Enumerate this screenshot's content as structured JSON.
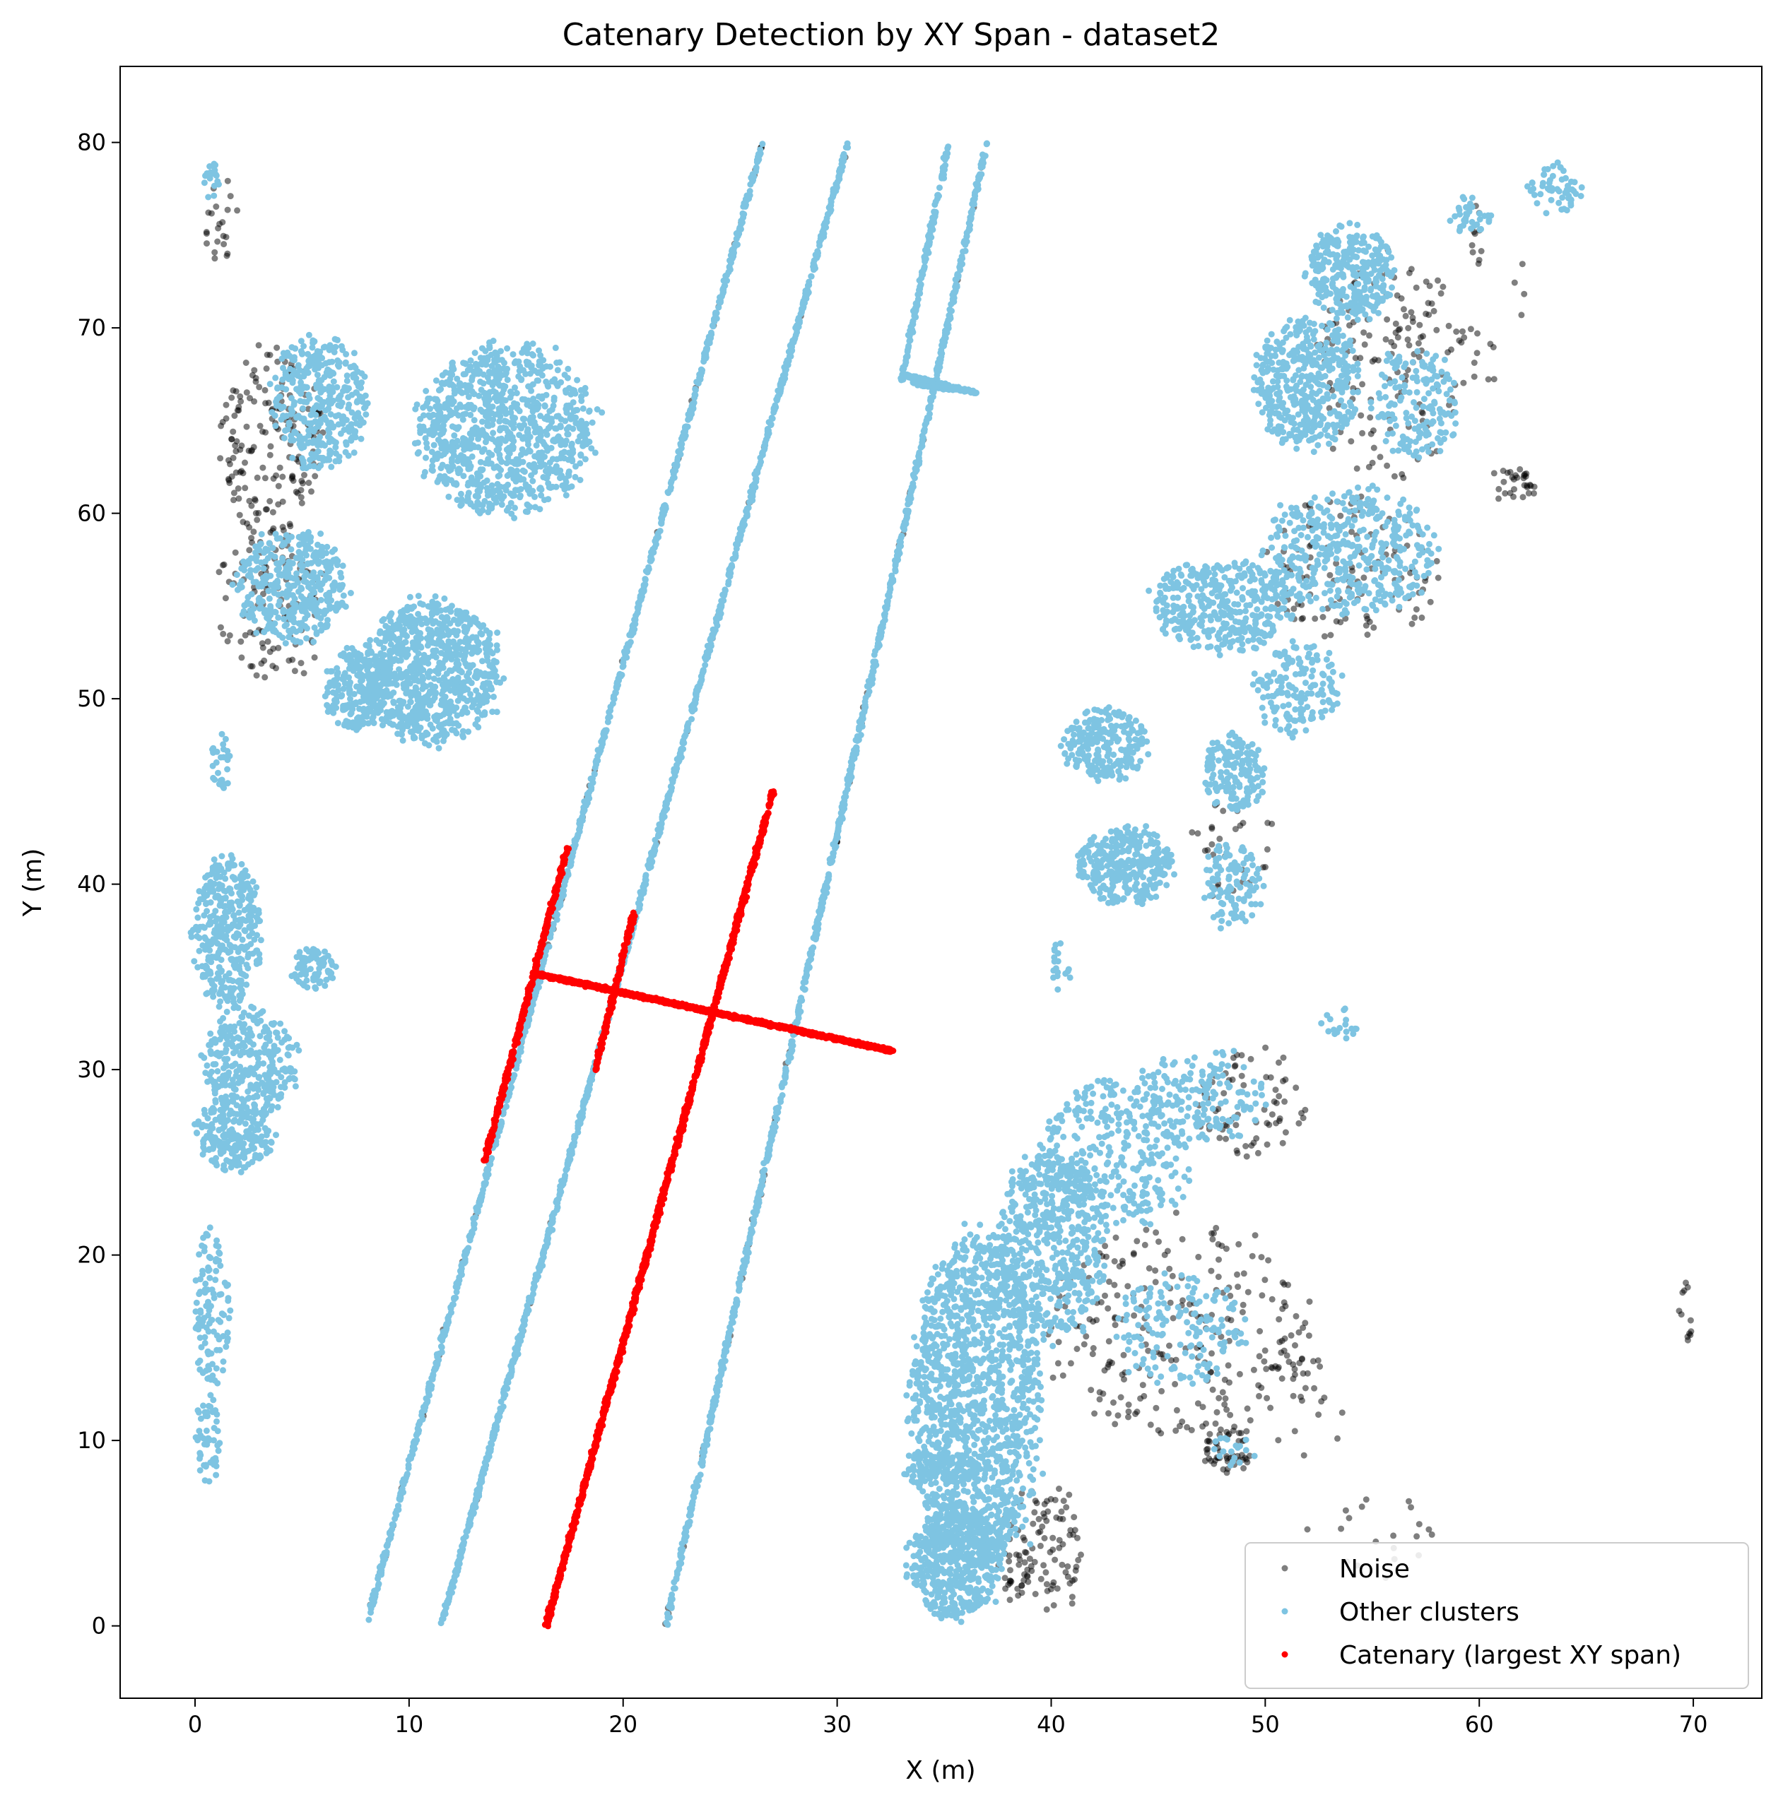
{
  "chart_data": {
    "type": "scatter",
    "title": "Catenary Detection by XY Span - dataset2",
    "xlabel": "X (m)",
    "ylabel": "Y (m)",
    "xlim": [
      -3.5,
      73.2
    ],
    "ylim": [
      -3.9,
      84.1
    ],
    "xticks": [
      0,
      10,
      20,
      30,
      40,
      50,
      60,
      70
    ],
    "yticks": [
      0,
      10,
      20,
      30,
      40,
      50,
      60,
      70,
      80
    ],
    "grid": false,
    "legend_position": "lower right",
    "series": [
      {
        "name": "Noise",
        "color": "#000000",
        "alpha": 0.5,
        "clusters": [
          {
            "x": 3.5,
            "y": 64,
            "rx": 2.5,
            "ry": 5,
            "n": 170
          },
          {
            "x": 3.5,
            "y": 55,
            "rx": 2.5,
            "ry": 4,
            "n": 110
          },
          {
            "x": 1.2,
            "y": 76,
            "rx": 0.8,
            "ry": 2.5,
            "n": 22
          },
          {
            "x": 56,
            "y": 68,
            "rx": 3.5,
            "ry": 6,
            "n": 150
          },
          {
            "x": 54,
            "y": 57,
            "rx": 4,
            "ry": 4,
            "n": 110
          },
          {
            "x": 46,
            "y": 16,
            "rx": 6,
            "ry": 6,
            "n": 240
          },
          {
            "x": 39.5,
            "y": 4,
            "rx": 2,
            "ry": 3.5,
            "n": 110
          },
          {
            "x": 49.5,
            "y": 28,
            "rx": 2.5,
            "ry": 3,
            "n": 70
          },
          {
            "x": 48.2,
            "y": 9.5,
            "rx": 1.2,
            "ry": 1.2,
            "n": 50
          },
          {
            "x": 61.5,
            "y": 61.5,
            "rx": 1.2,
            "ry": 1,
            "n": 30
          },
          {
            "x": 48.5,
            "y": 42,
            "rx": 2,
            "ry": 3,
            "n": 30
          },
          {
            "x": 55,
            "y": 5,
            "rx": 3,
            "ry": 2.5,
            "n": 20
          },
          {
            "x": 69.6,
            "y": 16.5,
            "rx": 0.3,
            "ry": 2,
            "n": 12
          },
          {
            "x": 60.5,
            "y": 72,
            "rx": 2,
            "ry": 5,
            "n": 22
          },
          {
            "x": 52,
            "y": 12,
            "rx": 2,
            "ry": 3,
            "n": 25
          }
        ],
        "lines": [
          {
            "x0": 8,
            "y0": 0,
            "x1": 26.5,
            "y1": 80,
            "n": 60
          },
          {
            "x0": 22,
            "y0": 0,
            "x1": 37,
            "y1": 80,
            "n": 55
          },
          {
            "x0": 11.5,
            "y0": 0,
            "x1": 30.5,
            "y1": 80,
            "n": 20
          }
        ]
      },
      {
        "name": "Other clusters",
        "color": "#7ec4e2",
        "alpha": 1,
        "clusters": [
          {
            "x": 14.5,
            "y": 64.5,
            "rx": 4,
            "ry": 4.5,
            "n": 900
          },
          {
            "x": 11,
            "y": 51.5,
            "rx": 3.2,
            "ry": 3.8,
            "n": 800
          },
          {
            "x": 4.5,
            "y": 56,
            "rx": 2.5,
            "ry": 3,
            "n": 380
          },
          {
            "x": 5.8,
            "y": 66,
            "rx": 2.2,
            "ry": 3.5,
            "n": 380
          },
          {
            "x": 7.5,
            "y": 50.5,
            "rx": 1.5,
            "ry": 2.2,
            "n": 220
          },
          {
            "x": 1.5,
            "y": 37.5,
            "rx": 1.6,
            "ry": 4,
            "n": 380
          },
          {
            "x": 2.5,
            "y": 30.5,
            "rx": 2.2,
            "ry": 3,
            "n": 300
          },
          {
            "x": 1.8,
            "y": 26.5,
            "rx": 1.8,
            "ry": 2,
            "n": 220
          },
          {
            "x": 5.5,
            "y": 35.5,
            "rx": 1,
            "ry": 1.2,
            "n": 70
          },
          {
            "x": 0.8,
            "y": 17,
            "rx": 0.8,
            "ry": 4.5,
            "n": 110
          },
          {
            "x": 0.6,
            "y": 10,
            "rx": 0.6,
            "ry": 2.5,
            "n": 50
          },
          {
            "x": 1.2,
            "y": 46.5,
            "rx": 0.5,
            "ry": 1.5,
            "n": 28
          },
          {
            "x": 0.8,
            "y": 78,
            "rx": 0.4,
            "ry": 1,
            "n": 18
          },
          {
            "x": 36.5,
            "y": 12,
            "rx": 3,
            "ry": 9,
            "n": 1300
          },
          {
            "x": 40,
            "y": 20.5,
            "rx": 2.5,
            "ry": 5,
            "n": 550
          },
          {
            "x": 35.5,
            "y": 3.5,
            "rx": 2.2,
            "ry": 3,
            "n": 450
          },
          {
            "x": 34.5,
            "y": 8.5,
            "rx": 1.5,
            "ry": 1,
            "n": 90
          },
          {
            "x": 43,
            "y": 25.5,
            "rx": 3.5,
            "ry": 4,
            "n": 320
          },
          {
            "x": 47,
            "y": 28.5,
            "rx": 3,
            "ry": 2.5,
            "n": 160
          },
          {
            "x": 46,
            "y": 16,
            "rx": 3,
            "ry": 3,
            "n": 160
          },
          {
            "x": 43.5,
            "y": 41,
            "rx": 2.2,
            "ry": 2,
            "n": 320
          },
          {
            "x": 48.5,
            "y": 40,
            "rx": 1.3,
            "ry": 2.5,
            "n": 110
          },
          {
            "x": 42.5,
            "y": 47.5,
            "rx": 2,
            "ry": 2,
            "n": 220
          },
          {
            "x": 48.5,
            "y": 46,
            "rx": 1.5,
            "ry": 2,
            "n": 150
          },
          {
            "x": 48,
            "y": 55,
            "rx": 3.2,
            "ry": 2.5,
            "n": 380
          },
          {
            "x": 54,
            "y": 58,
            "rx": 4,
            "ry": 3.5,
            "n": 420
          },
          {
            "x": 51.5,
            "y": 50.5,
            "rx": 2,
            "ry": 2.5,
            "n": 160
          },
          {
            "x": 52,
            "y": 67,
            "rx": 2.5,
            "ry": 3.5,
            "n": 420
          },
          {
            "x": 54,
            "y": 73,
            "rx": 2,
            "ry": 2.5,
            "n": 300
          },
          {
            "x": 57,
            "y": 66,
            "rx": 2,
            "ry": 3,
            "n": 160
          },
          {
            "x": 59.5,
            "y": 76,
            "rx": 1,
            "ry": 1,
            "n": 35
          },
          {
            "x": 63.5,
            "y": 77.5,
            "rx": 1.2,
            "ry": 1.5,
            "n": 55
          },
          {
            "x": 40.5,
            "y": 35.5,
            "rx": 0.5,
            "ry": 1.5,
            "n": 18
          },
          {
            "x": 53.5,
            "y": 32.5,
            "rx": 1,
            "ry": 1,
            "n": 18
          },
          {
            "x": 48.5,
            "y": 9.5,
            "rx": 1,
            "ry": 1,
            "n": 18
          }
        ],
        "lines": [
          {
            "x0": 8,
            "y0": 0,
            "x1": 26.5,
            "y1": 80,
            "n": 900
          },
          {
            "x0": 11.5,
            "y0": 0,
            "x1": 30.5,
            "y1": 80,
            "n": 1100
          },
          {
            "x0": 22,
            "y0": 0,
            "x1": 37,
            "y1": 80,
            "n": 950
          },
          {
            "x0": 33,
            "y0": 67.2,
            "x1": 35.2,
            "y1": 80,
            "n": 160
          },
          {
            "x0": 33,
            "y0": 67.5,
            "x1": 36.5,
            "y1": 66.5,
            "n": 90
          },
          {
            "x0": 33.5,
            "y0": 67,
            "x1": 36.5,
            "y1": 66.5,
            "n": 60
          }
        ]
      },
      {
        "name": "Catenary (largest XY span)",
        "color": "#ff0000",
        "alpha": 1,
        "clusters": [],
        "lines": [
          {
            "x0": 16.4,
            "y0": 0,
            "x1": 27,
            "y1": 45,
            "n": 1300
          },
          {
            "x0": 15.8,
            "y0": 35.2,
            "x1": 32.6,
            "y1": 31,
            "n": 1400
          },
          {
            "x0": 13.5,
            "y0": 25,
            "x1": 17.4,
            "y1": 42,
            "n": 320
          },
          {
            "x0": 18.7,
            "y0": 30,
            "x1": 20.5,
            "y1": 38.5,
            "n": 160
          }
        ]
      }
    ]
  }
}
